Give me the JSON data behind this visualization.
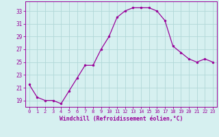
{
  "x": [
    0,
    1,
    2,
    3,
    4,
    5,
    6,
    7,
    8,
    9,
    10,
    11,
    12,
    13,
    14,
    15,
    16,
    17,
    18,
    19,
    20,
    21,
    22,
    23
  ],
  "y": [
    21.5,
    19.5,
    19.0,
    19.0,
    18.5,
    20.5,
    22.5,
    24.5,
    24.5,
    27.0,
    29.0,
    32.0,
    33.0,
    33.5,
    33.5,
    33.5,
    33.0,
    31.5,
    27.5,
    26.5,
    25.5,
    25.0,
    25.5,
    25.0
  ],
  "line_color": "#990099",
  "marker_color": "#990099",
  "bg_color": "#d6f0f0",
  "grid_color": "#b0d8d8",
  "tick_label_color": "#990099",
  "xlabel": "Windchill (Refroidissement éolien,°C)",
  "xlabel_color": "#990099",
  "ylim": [
    18.0,
    34.5
  ],
  "yticks": [
    19,
    21,
    23,
    25,
    27,
    29,
    31,
    33
  ],
  "xticks": [
    0,
    1,
    2,
    3,
    4,
    5,
    6,
    7,
    8,
    9,
    10,
    11,
    12,
    13,
    14,
    15,
    16,
    17,
    18,
    19,
    20,
    21,
    22,
    23
  ],
  "font_family": "monospace"
}
